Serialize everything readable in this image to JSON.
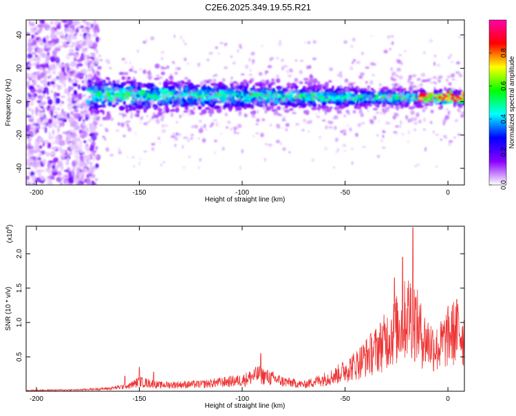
{
  "title": "C2E6.2025.349.19.55.R21",
  "chart_data": [
    {
      "type": "heatmap",
      "xlabel": "Height of straight line (km)",
      "ylabel": "Frequency (Hz)",
      "xlim": [
        -205,
        8
      ],
      "ylim": [
        -50,
        49
      ],
      "x_ticks": [
        {
          "value": -200,
          "label": "-200"
        },
        {
          "value": -150,
          "label": "-150"
        },
        {
          "value": -100,
          "label": "-100"
        },
        {
          "value": -50,
          "label": "-50"
        },
        {
          "value": 0,
          "label": "0"
        }
      ],
      "y_ticks": [
        {
          "value": -40,
          "label": "-40"
        },
        {
          "value": -20,
          "label": "-20"
        },
        {
          "value": 0,
          "label": "0"
        },
        {
          "value": 20,
          "label": "20"
        },
        {
          "value": 40,
          "label": "40"
        }
      ],
      "colorbar": {
        "label": "Normalized spectral amplitude",
        "range": [
          0,
          1
        ],
        "colormap": [
          "#ffffff",
          "#8800ff",
          "#0000ff",
          "#00ffff",
          "#00ff00",
          "#ffff00",
          "#ff0000",
          "#ff00aa"
        ],
        "ticks": [
          {
            "value": 0.0,
            "label": "0.0"
          },
          {
            "value": 0.2,
            "label": "0.2"
          },
          {
            "value": 0.4,
            "label": "0.4"
          },
          {
            "value": 0.6,
            "label": "0.6"
          },
          {
            "value": 0.8,
            "label": "0.8"
          }
        ]
      },
      "band": {
        "x_start": -175,
        "x_end": 8,
        "center_freq": 2,
        "note_only_for_rendering": false
      },
      "noise_region": {
        "x_start": -205,
        "x_end": -170,
        "freq_range": [
          -50,
          49
        ]
      }
    },
    {
      "type": "line",
      "xlabel": "Height of straight line (km)",
      "ylabel": "SNR (10 * v/v)",
      "multiplier_base": "(x10",
      "multiplier_exp": "4",
      "multiplier_close": ")",
      "xlim": [
        -205,
        8
      ],
      "ylim": [
        0,
        2.4
      ],
      "color": "#ee3333",
      "x_ticks": [
        {
          "value": -200,
          "label": "-200"
        },
        {
          "value": -150,
          "label": "-150"
        },
        {
          "value": -100,
          "label": "-100"
        },
        {
          "value": -50,
          "label": "-50"
        },
        {
          "value": 0,
          "label": "0"
        }
      ],
      "y_ticks": [
        {
          "value": 0.5,
          "label": "0.5"
        },
        {
          "value": 1.0,
          "label": "1.0"
        },
        {
          "value": 1.5,
          "label": "1.5"
        },
        {
          "value": 2.0,
          "label": "2.0"
        }
      ],
      "envelope": [
        {
          "x": -205,
          "y": 0.02
        },
        {
          "x": -180,
          "y": 0.03
        },
        {
          "x": -165,
          "y": 0.06
        },
        {
          "x": -155,
          "y": 0.12
        },
        {
          "x": -150,
          "y": 0.22
        },
        {
          "x": -140,
          "y": 0.14
        },
        {
          "x": -120,
          "y": 0.16
        },
        {
          "x": -100,
          "y": 0.25
        },
        {
          "x": -92,
          "y": 0.38
        },
        {
          "x": -80,
          "y": 0.22
        },
        {
          "x": -70,
          "y": 0.15
        },
        {
          "x": -55,
          "y": 0.35
        },
        {
          "x": -45,
          "y": 0.6
        },
        {
          "x": -35,
          "y": 0.95
        },
        {
          "x": -25,
          "y": 1.4
        },
        {
          "x": -18,
          "y": 1.8
        },
        {
          "x": -12,
          "y": 1.2
        },
        {
          "x": -5,
          "y": 0.95
        },
        {
          "x": 0,
          "y": 1.25
        },
        {
          "x": 5,
          "y": 1.4
        },
        {
          "x": 8,
          "y": 1.2
        }
      ],
      "peaks": [
        {
          "x": -17,
          "y": 2.38
        },
        {
          "x": -22,
          "y": 1.95
        },
        {
          "x": -26,
          "y": 1.65
        },
        {
          "x": -150,
          "y": 0.35
        },
        {
          "x": -157,
          "y": 0.22
        },
        {
          "x": -143,
          "y": 0.28
        },
        {
          "x": -91,
          "y": 0.55
        }
      ]
    }
  ]
}
